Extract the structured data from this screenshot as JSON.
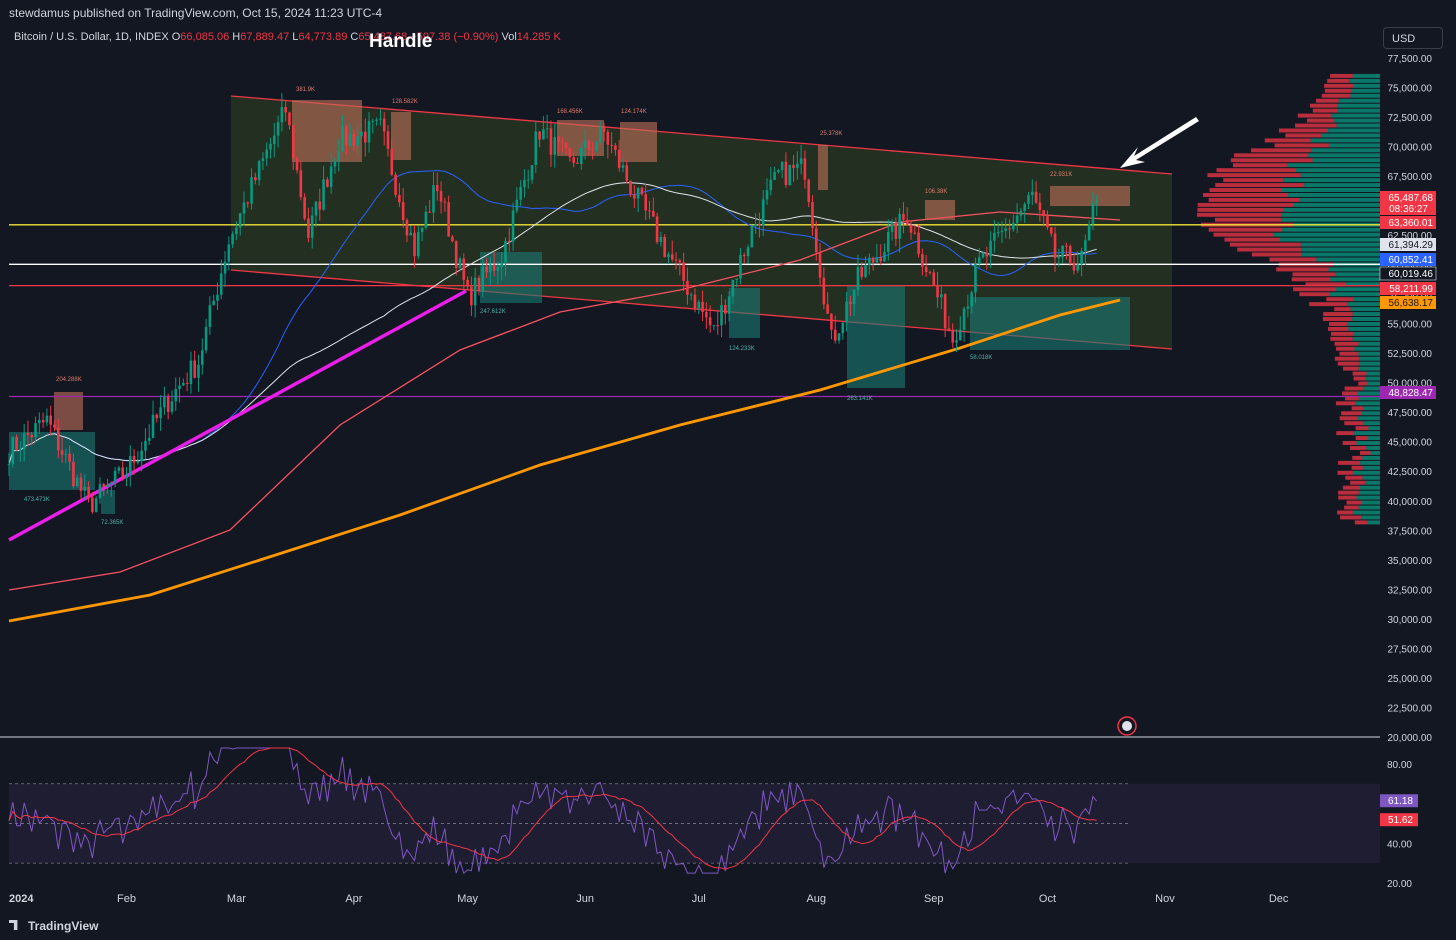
{
  "header": {
    "publisher_line": "stewdamus published on TradingView.com, Oct 15, 2024 11:23 UTC-4",
    "symbol": "Bitcoin / U.S. Dollar, 1D, INDEX",
    "o_label": "O",
    "o_value": "66,085.06",
    "h_label": "H",
    "h_value": "67,889.47",
    "l_label": "L",
    "l_value": "64,773.89",
    "c_label": "C",
    "c_value": "65,487.68",
    "change_value": "−597.38 (−0.90%)",
    "vol_label": "Vol",
    "vol_value": "14.285 K",
    "annotation": "Handle",
    "currency_button": "USD"
  },
  "footer": {
    "brand": "TradingView"
  },
  "colors": {
    "background": "#131722",
    "up": "#089981",
    "down": "#f23645",
    "ma50": "#2962ff",
    "ma100": "#e0e3eb",
    "ma200": "#f7525f",
    "ma400": "#ff9800",
    "trend": "#e91ee9",
    "rsi": "#7e57c2",
    "rsi_ma": "#f23645",
    "channel_fill": "#2a3a22",
    "yellow": "#f2e537",
    "purple": "#9c27b0"
  },
  "chart_data": [
    {
      "type": "candlestick",
      "x_axis_labels": [
        "2024",
        "Feb",
        "Mar",
        "Apr",
        "May",
        "Jun",
        "Jul",
        "Aug",
        "Sep",
        "Oct",
        "Nov",
        "Dec"
      ],
      "y_axis_ticks": [
        "77,500.00",
        "75,000.00",
        "72,500.00",
        "70,000.00",
        "67,500.00",
        "65,000.00",
        "62,500.00",
        "60,000.00",
        "57,500.00",
        "55,000.00",
        "52,500.00",
        "50,000.00",
        "47,500.00",
        "45,000.00",
        "42,500.00",
        "40,000.00",
        "37,500.00",
        "35,000.00",
        "32,500.00",
        "30,000.00",
        "27,500.00",
        "25,000.00",
        "22,500.00",
        "20,000.00"
      ],
      "ylim": [
        20000,
        78500
      ],
      "price_path": [
        [
          "2024-01-01",
          44200
        ],
        [
          "2024-01-11",
          46800
        ],
        [
          "2024-01-22",
          39600
        ],
        [
          "2024-02-01",
          42500
        ],
        [
          "2024-02-12",
          48500
        ],
        [
          "2024-02-20",
          51800
        ],
        [
          "2024-02-28",
          62000
        ],
        [
          "2024-03-05",
          66500
        ],
        [
          "2024-03-14",
          73100
        ],
        [
          "2024-03-20",
          62500
        ],
        [
          "2024-03-28",
          70500
        ],
        [
          "2024-04-08",
          71500
        ],
        [
          "2024-04-17",
          61300
        ],
        [
          "2024-04-23",
          66800
        ],
        [
          "2024-05-01",
          57200
        ],
        [
          "2024-05-10",
          60800
        ],
        [
          "2024-05-20",
          71400
        ],
        [
          "2024-05-28",
          68500
        ],
        [
          "2024-06-06",
          71100
        ],
        [
          "2024-06-14",
          66000
        ],
        [
          "2024-06-24",
          60300
        ],
        [
          "2024-07-05",
          54300
        ],
        [
          "2024-07-15",
          62900
        ],
        [
          "2024-07-22",
          67600
        ],
        [
          "2024-07-29",
          68200
        ],
        [
          "2024-08-05",
          53500
        ],
        [
          "2024-08-12",
          58700
        ],
        [
          "2024-08-25",
          64200
        ],
        [
          "2024-09-06",
          53800
        ],
        [
          "2024-09-13",
          60000
        ],
        [
          "2024-09-27",
          65800
        ],
        [
          "2024-10-03",
          60700
        ],
        [
          "2024-10-10",
          60300
        ],
        [
          "2024-10-14",
          65487
        ]
      ],
      "price_labels": [
        {
          "text": "65,487.68",
          "sub": "08:36:27",
          "color": "#f23645"
        },
        {
          "text": "63,360.01",
          "color": "#f23645"
        },
        {
          "text": "61,394.29",
          "color": "#e0e3eb"
        },
        {
          "text": "60,852.41",
          "color": "#2962ff"
        },
        {
          "text": "60,019.46",
          "color": "#131722"
        },
        {
          "text": "58,211.99",
          "color": "#f23645"
        },
        {
          "text": "56,638.17",
          "color": "#ff9800"
        },
        {
          "text": "48,828.47",
          "color": "#9c27b0"
        }
      ],
      "horizontal_levels": [
        {
          "value": 63360,
          "color": "#f2e537"
        },
        {
          "value": 60019,
          "color": "#ffffff"
        },
        {
          "value": 58212,
          "color": "#f23645"
        },
        {
          "value": 48828,
          "color": "#9c27b0"
        }
      ],
      "volume_labels": [
        "381.9K",
        "128.582K",
        "168.456K",
        "124.174K",
        "25.378K",
        "106.38K",
        "22.931K",
        "204.288K",
        "473.473K",
        "72.365K",
        "247.612K",
        "124.233K",
        "263.141K",
        "58.018K"
      ]
    },
    {
      "type": "line",
      "name": "RSI",
      "y_axis_ticks": [
        "80.00",
        "40.00",
        "20.00"
      ],
      "ylim": [
        20,
        90
      ],
      "rsi_value": "61.18",
      "rsi_ma_value": "51.62",
      "bands": [
        70,
        50,
        30
      ]
    }
  ]
}
